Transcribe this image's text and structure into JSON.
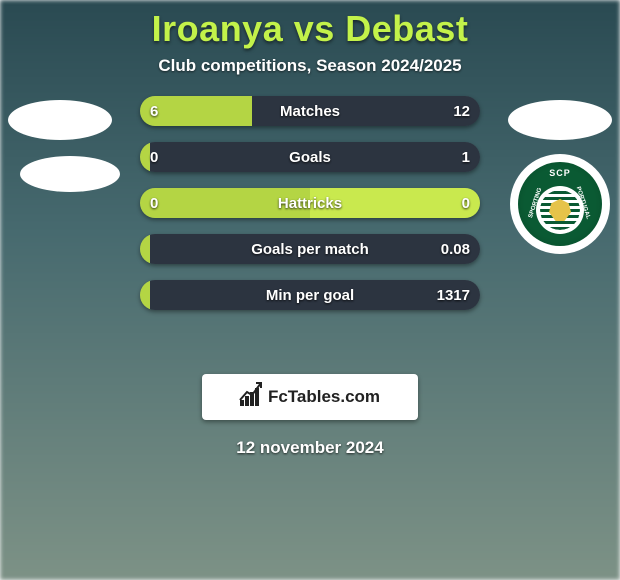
{
  "title": "Iroanya vs Debast",
  "subtitle": "Club competitions, Season 2024/2025",
  "date": "12 november 2024",
  "footer_brand": "FcTables.com",
  "colors": {
    "title": "#c3f24a",
    "text": "#ffffff",
    "bar_left": "#b4d544",
    "bar_right_dark": "#2c3440",
    "bar_right_lime": "#c9e94e",
    "footer_bg": "#ffffff"
  },
  "right_logo": {
    "name": "Sporting CP",
    "top_text": "SCP",
    "side_left": "SPORTING",
    "side_right": "PORTUGAL",
    "ring_color": "#0a5a33",
    "inner_bg": "#ffffff",
    "lion_color": "#e6c34a"
  },
  "stats": [
    {
      "label": "Matches",
      "left_value": "6",
      "right_value": "12",
      "left_pct": 33,
      "right_pct": 67,
      "left_color": "#b4d544",
      "right_color": "#2c3440"
    },
    {
      "label": "Goals",
      "left_value": "0",
      "right_value": "1",
      "left_pct": 3,
      "right_pct": 97,
      "left_color": "#b4d544",
      "right_color": "#2c3440"
    },
    {
      "label": "Hattricks",
      "left_value": "0",
      "right_value": "0",
      "left_pct": 50,
      "right_pct": 50,
      "left_color": "#b4d544",
      "right_color": "#c9e94e"
    },
    {
      "label": "Goals per match",
      "left_value": "",
      "right_value": "0.08",
      "left_pct": 3,
      "right_pct": 97,
      "left_color": "#b4d544",
      "right_color": "#2c3440"
    },
    {
      "label": "Min per goal",
      "left_value": "",
      "right_value": "1317",
      "left_pct": 3,
      "right_pct": 97,
      "left_color": "#b4d544",
      "right_color": "#2c3440"
    }
  ]
}
